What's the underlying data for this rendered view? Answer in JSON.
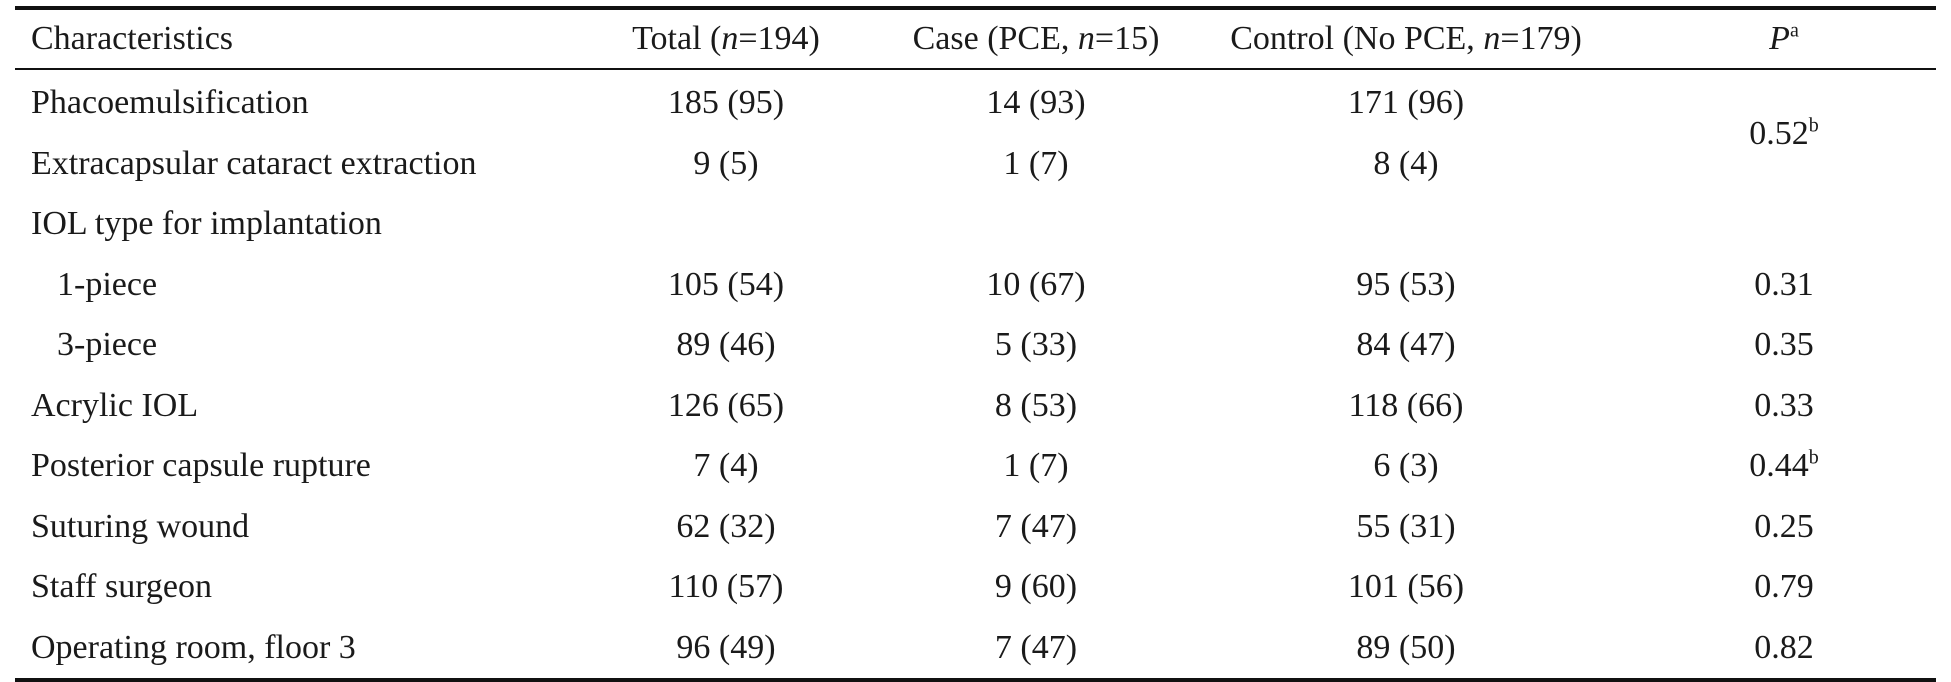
{
  "headers": {
    "characteristics": "Characteristics",
    "total": {
      "prefix": "Total (",
      "n_symbol": "n",
      "suffix": "=194)"
    },
    "case": {
      "prefix": "Case (PCE, ",
      "n_symbol": "n",
      "suffix": "=15)"
    },
    "control": {
      "prefix": "Control (No PCE, ",
      "n_symbol": "n",
      "suffix": "=179)"
    },
    "p": {
      "symbol": "P",
      "superscript": "a"
    }
  },
  "rows": [
    {
      "label": "Phacoemulsification",
      "total": "185 (95)",
      "case": "14 (93)",
      "control": "171 (96)",
      "p": "0.52",
      "p_sup": "b"
    },
    {
      "label": "Extracapsular cataract extraction",
      "total": "9 (5)",
      "case": "1 (7)",
      "control": "8 (4)"
    },
    {
      "label": "IOL type for implantation"
    },
    {
      "label": "1-piece",
      "total": "105 (54)",
      "case": "10 (67)",
      "control": "95 (53)",
      "p": "0.31"
    },
    {
      "label": "3-piece",
      "total": "89 (46)",
      "case": "5 (33)",
      "control": "84 (47)",
      "p": "0.35"
    },
    {
      "label": "Acrylic IOL",
      "total": "126 (65)",
      "case": "8 (53)",
      "control": "118 (66)",
      "p": "0.33"
    },
    {
      "label": "Posterior capsule rupture",
      "total": "7 (4)",
      "case": "1 (7)",
      "control": "6 (3)",
      "p": "0.44",
      "p_sup": "b"
    },
    {
      "label": "Suturing wound",
      "total": "62 (32)",
      "case": "7 (47)",
      "control": "55 (31)",
      "p": "0.25"
    },
    {
      "label": "Staff surgeon",
      "total": "110 (57)",
      "case": "9 (60)",
      "control": "101 (56)",
      "p": "0.79"
    },
    {
      "label": "Operating room, floor 3",
      "total": "96 (49)",
      "case": "7 (47)",
      "control": "89 (50)",
      "p": "0.82"
    }
  ]
}
